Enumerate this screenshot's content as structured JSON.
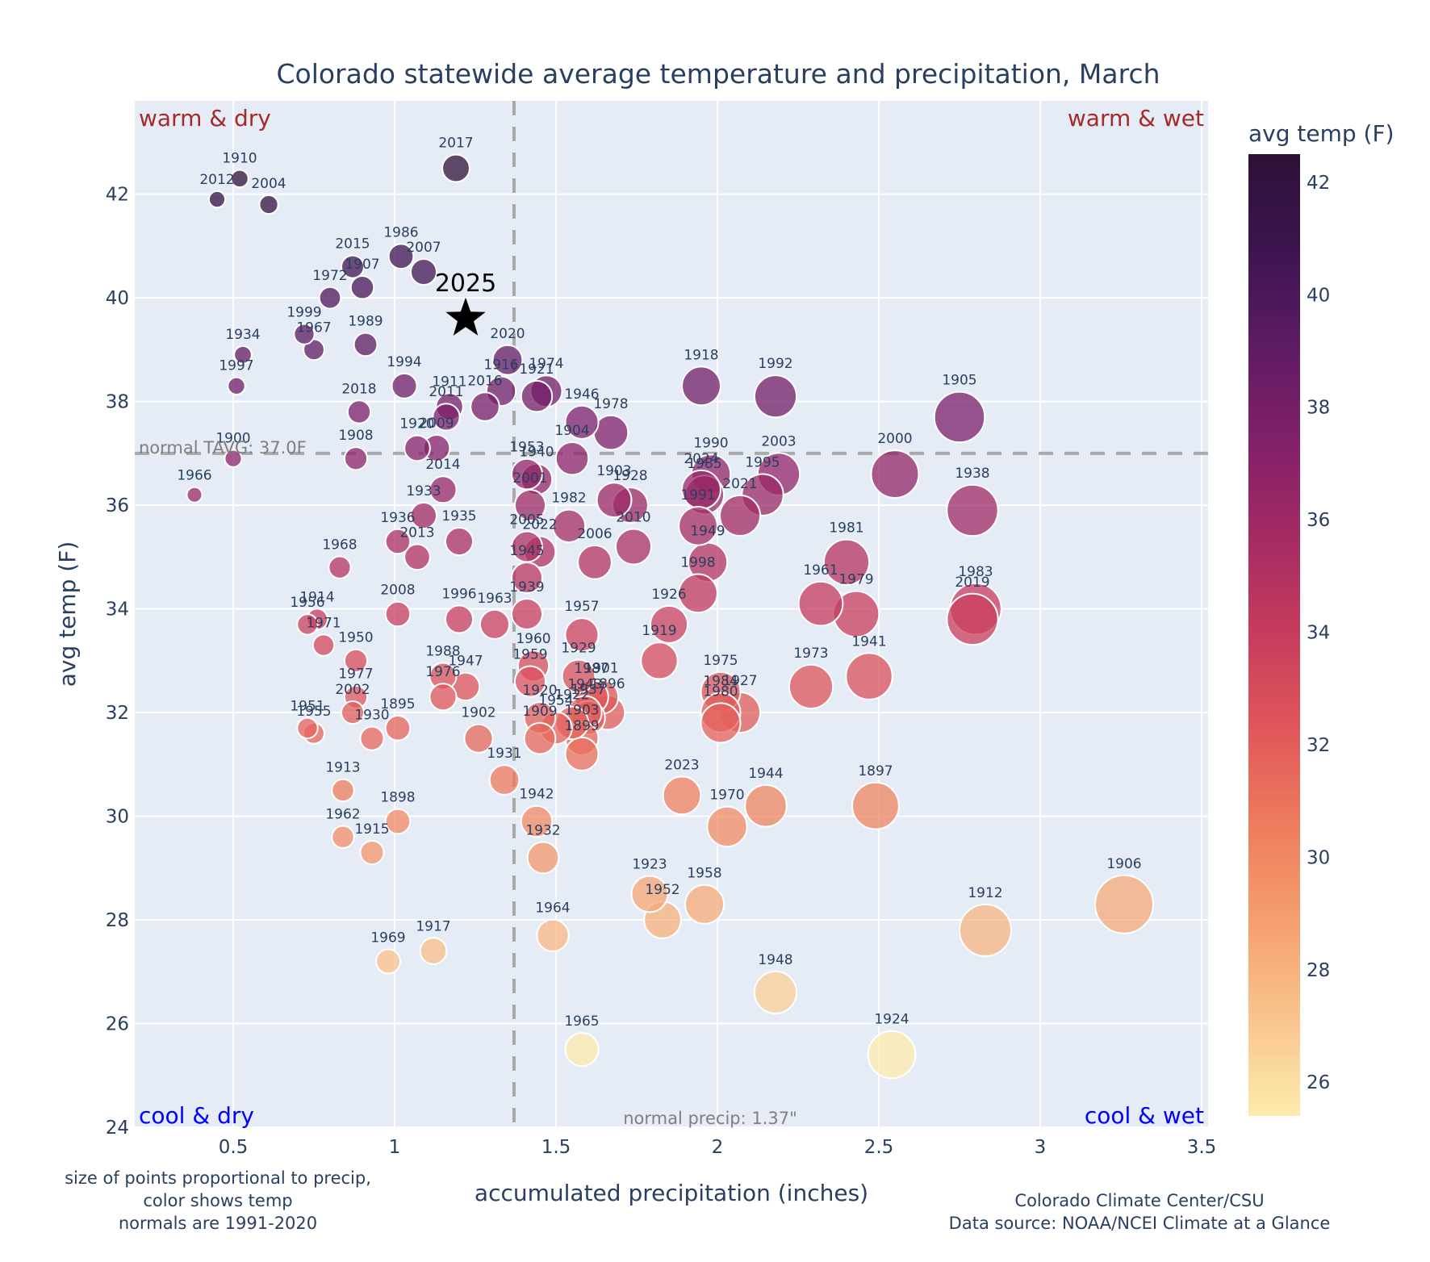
{
  "chart_data": {
    "type": "scatter",
    "title": "Colorado statewide average temperature and precipitation, March",
    "xlabel": "accumulated precipitation (inches)",
    "ylabel": "avg temp (F)",
    "xlim": [
      0.195,
      3.52
    ],
    "ylim": [
      24,
      43.8
    ],
    "x_ticks": [
      0.5,
      1,
      1.5,
      2,
      2.5,
      3,
      3.5
    ],
    "x_tick_labels": [
      "0.5",
      "1",
      "1.5",
      "2",
      "2.5",
      "3",
      "3.5"
    ],
    "y_ticks": [
      24,
      26,
      28,
      30,
      32,
      34,
      36,
      38,
      40,
      42
    ],
    "y_tick_labels": [
      "24",
      "26",
      "28",
      "30",
      "32",
      "34",
      "36",
      "38",
      "40",
      "42"
    ],
    "grid": true,
    "colorbar": {
      "title": "avg temp (F)",
      "range": [
        25.4,
        42.5
      ],
      "ticks": [
        26,
        28,
        30,
        32,
        34,
        36,
        38,
        40,
        42
      ],
      "tick_labels": [
        "26",
        "28",
        "30",
        "32",
        "34",
        "36",
        "38",
        "40",
        "42"
      ],
      "colorscale": [
        "#fcecad",
        "#f9c48d",
        "#f5a06f",
        "#ee7d5d",
        "#e0585a",
        "#c73c5d",
        "#a52b63",
        "#82206a",
        "#5e1b63",
        "#3c1450",
        "#2d1137"
      ]
    },
    "normals": {
      "tavg": 37.0,
      "tavg_label": "normal TAVG: 37.0F",
      "precip": 1.37,
      "precip_label": "normal precip: 1.37\""
    },
    "quadrant_labels": {
      "warm_dry": "warm & dry",
      "warm_wet": "warm & wet",
      "cool_dry": "cool & dry",
      "cool_wet": "cool & wet"
    },
    "highlight": {
      "label": "2025",
      "x": 1.22,
      "y": 39.6
    },
    "points": [
      {
        "year": "1910",
        "x": 0.52,
        "y": 42.3
      },
      {
        "year": "2012",
        "x": 0.45,
        "y": 41.9
      },
      {
        "year": "2004",
        "x": 0.61,
        "y": 41.8
      },
      {
        "year": "2017",
        "x": 1.19,
        "y": 42.5
      },
      {
        "year": "1986",
        "x": 1.02,
        "y": 40.8
      },
      {
        "year": "2007",
        "x": 1.09,
        "y": 40.5
      },
      {
        "year": "2015",
        "x": 0.87,
        "y": 40.6
      },
      {
        "year": "1907",
        "x": 0.9,
        "y": 40.2
      },
      {
        "year": "1972",
        "x": 0.8,
        "y": 40.0
      },
      {
        "year": "1999",
        "x": 0.72,
        "y": 39.3
      },
      {
        "year": "1967",
        "x": 0.75,
        "y": 39.0
      },
      {
        "year": "1989",
        "x": 0.91,
        "y": 39.1
      },
      {
        "year": "1934",
        "x": 0.53,
        "y": 38.9
      },
      {
        "year": "1997",
        "x": 0.51,
        "y": 38.3
      },
      {
        "year": "1994",
        "x": 1.03,
        "y": 38.3
      },
      {
        "year": "2018",
        "x": 0.89,
        "y": 37.8
      },
      {
        "year": "1911",
        "x": 1.17,
        "y": 37.9
      },
      {
        "year": "2011",
        "x": 1.16,
        "y": 37.7
      },
      {
        "year": "2016",
        "x": 1.28,
        "y": 37.9
      },
      {
        "year": "2020",
        "x": 1.35,
        "y": 38.8
      },
      {
        "year": "1916",
        "x": 1.33,
        "y": 38.2
      },
      {
        "year": "1921",
        "x": 1.44,
        "y": 38.1
      },
      {
        "year": "1974",
        "x": 1.47,
        "y": 38.2
      },
      {
        "year": "1946",
        "x": 1.58,
        "y": 37.6
      },
      {
        "year": "1978",
        "x": 1.67,
        "y": 37.4
      },
      {
        "year": "1904",
        "x": 1.55,
        "y": 36.9
      },
      {
        "year": "1920",
        "x": 1.07,
        "y": 37.1
      },
      {
        "year": "2009",
        "x": 1.13,
        "y": 37.1
      },
      {
        "year": "1900",
        "x": 0.5,
        "y": 36.9
      },
      {
        "year": "1908",
        "x": 0.88,
        "y": 36.9
      },
      {
        "year": "1966",
        "x": 0.38,
        "y": 36.2
      },
      {
        "year": "2014",
        "x": 1.15,
        "y": 36.3
      },
      {
        "year": "1953",
        "x": 1.41,
        "y": 36.6
      },
      {
        "year": "1940",
        "x": 1.44,
        "y": 36.5
      },
      {
        "year": "2001",
        "x": 1.42,
        "y": 36.0
      },
      {
        "year": "1903",
        "x": 1.68,
        "y": 36.1
      },
      {
        "year": "1928",
        "x": 1.73,
        "y": 36.0
      },
      {
        "year": "1982",
        "x": 1.54,
        "y": 35.6
      },
      {
        "year": "2010",
        "x": 1.74,
        "y": 35.2
      },
      {
        "year": "2006",
        "x": 1.62,
        "y": 34.9
      },
      {
        "year": "1933",
        "x": 1.09,
        "y": 35.8
      },
      {
        "year": "1936",
        "x": 1.01,
        "y": 35.3
      },
      {
        "year": "2013",
        "x": 1.07,
        "y": 35.0
      },
      {
        "year": "1935",
        "x": 1.2,
        "y": 35.3
      },
      {
        "year": "2005",
        "x": 1.41,
        "y": 35.2
      },
      {
        "year": "2022",
        "x": 1.45,
        "y": 35.1
      },
      {
        "year": "1945",
        "x": 1.41,
        "y": 34.6
      },
      {
        "year": "1939",
        "x": 1.41,
        "y": 33.9
      },
      {
        "year": "1968",
        "x": 0.83,
        "y": 34.8
      },
      {
        "year": "2008",
        "x": 1.01,
        "y": 33.9
      },
      {
        "year": "1996",
        "x": 1.2,
        "y": 33.8
      },
      {
        "year": "1963",
        "x": 1.31,
        "y": 33.7
      },
      {
        "year": "1956",
        "x": 0.73,
        "y": 33.7
      },
      {
        "year": "1914",
        "x": 0.76,
        "y": 33.8
      },
      {
        "year": "1971",
        "x": 0.78,
        "y": 33.3
      },
      {
        "year": "1950",
        "x": 0.88,
        "y": 33.0
      },
      {
        "year": "1918",
        "x": 1.95,
        "y": 38.3
      },
      {
        "year": "1992",
        "x": 2.18,
        "y": 38.1
      },
      {
        "year": "1905",
        "x": 2.75,
        "y": 37.7
      },
      {
        "year": "2000",
        "x": 2.55,
        "y": 36.6
      },
      {
        "year": "1938",
        "x": 2.79,
        "y": 35.9
      },
      {
        "year": "1990",
        "x": 1.98,
        "y": 36.6
      },
      {
        "year": "2003",
        "x": 2.19,
        "y": 36.6
      },
      {
        "year": "2024",
        "x": 1.95,
        "y": 36.3
      },
      {
        "year": "1995",
        "x": 2.14,
        "y": 36.2
      },
      {
        "year": "1985",
        "x": 1.96,
        "y": 36.2
      },
      {
        "year": "2021",
        "x": 2.07,
        "y": 35.8
      },
      {
        "year": "1991",
        "x": 1.94,
        "y": 35.6
      },
      {
        "year": "1949",
        "x": 1.97,
        "y": 34.9
      },
      {
        "year": "1998",
        "x": 1.94,
        "y": 34.3
      },
      {
        "year": "1981",
        "x": 2.4,
        "y": 34.9
      },
      {
        "year": "1961",
        "x": 2.32,
        "y": 34.1
      },
      {
        "year": "1979",
        "x": 2.43,
        "y": 33.9
      },
      {
        "year": "1983",
        "x": 2.8,
        "y": 34.0
      },
      {
        "year": "2019",
        "x": 2.79,
        "y": 33.8
      },
      {
        "year": "1926",
        "x": 1.85,
        "y": 33.7
      },
      {
        "year": "1957",
        "x": 1.58,
        "y": 33.5
      },
      {
        "year": "1960",
        "x": 1.43,
        "y": 32.9
      },
      {
        "year": "1959",
        "x": 1.42,
        "y": 32.6
      },
      {
        "year": "1929",
        "x": 1.57,
        "y": 32.7
      },
      {
        "year": "1987",
        "x": 1.61,
        "y": 32.3
      },
      {
        "year": "1919",
        "x": 1.82,
        "y": 33.0
      },
      {
        "year": "1975",
        "x": 2.01,
        "y": 32.4
      },
      {
        "year": "1984",
        "x": 2.01,
        "y": 32.0
      },
      {
        "year": "1927",
        "x": 2.07,
        "y": 32.0
      },
      {
        "year": "1980",
        "x": 2.01,
        "y": 31.8
      },
      {
        "year": "1973",
        "x": 2.29,
        "y": 32.5
      },
      {
        "year": "1941",
        "x": 2.47,
        "y": 32.7
      },
      {
        "year": "1988",
        "x": 1.15,
        "y": 32.7
      },
      {
        "year": "1947",
        "x": 1.22,
        "y": 32.5
      },
      {
        "year": "1976",
        "x": 1.15,
        "y": 32.3
      },
      {
        "year": "1977",
        "x": 0.88,
        "y": 32.3
      },
      {
        "year": "2002",
        "x": 0.87,
        "y": 32.0
      },
      {
        "year": "1901",
        "x": 1.64,
        "y": 32.3
      },
      {
        "year": "1920b",
        "label": "1920",
        "x": 1.45,
        "y": 31.9
      },
      {
        "year": "1943",
        "x": 1.59,
        "y": 32.0
      },
      {
        "year": "1922",
        "x": 1.55,
        "y": 31.8
      },
      {
        "year": "1937",
        "x": 1.6,
        "y": 31.9
      },
      {
        "year": "1954",
        "x": 1.5,
        "y": 31.7
      },
      {
        "year": "1909",
        "x": 1.45,
        "y": 31.5
      },
      {
        "year": "1903b",
        "label": "1903",
        "x": 1.58,
        "y": 31.5
      },
      {
        "year": "1896",
        "x": 1.66,
        "y": 32.0
      },
      {
        "year": "1899",
        "x": 1.58,
        "y": 31.2
      },
      {
        "year": "1895",
        "x": 1.01,
        "y": 31.7
      },
      {
        "year": "1930",
        "x": 0.93,
        "y": 31.5
      },
      {
        "year": "1951",
        "x": 0.73,
        "y": 31.7
      },
      {
        "year": "1955",
        "x": 0.75,
        "y": 31.6
      },
      {
        "year": "1902",
        "x": 1.26,
        "y": 31.5
      },
      {
        "year": "1931",
        "x": 1.34,
        "y": 30.7
      },
      {
        "year": "1913",
        "x": 0.84,
        "y": 30.5
      },
      {
        "year": "1898",
        "x": 1.01,
        "y": 29.9
      },
      {
        "year": "1962",
        "x": 0.84,
        "y": 29.6
      },
      {
        "year": "1915",
        "x": 0.93,
        "y": 29.3
      },
      {
        "year": "1942",
        "x": 1.44,
        "y": 29.9
      },
      {
        "year": "1932",
        "x": 1.46,
        "y": 29.2
      },
      {
        "year": "2023",
        "x": 1.89,
        "y": 30.4
      },
      {
        "year": "1970",
        "x": 2.03,
        "y": 29.8
      },
      {
        "year": "1944",
        "x": 2.15,
        "y": 30.2
      },
      {
        "year": "1897",
        "x": 2.49,
        "y": 30.2
      },
      {
        "year": "1923",
        "x": 1.79,
        "y": 28.5
      },
      {
        "year": "1952",
        "x": 1.83,
        "y": 28.0
      },
      {
        "year": "1958",
        "x": 1.96,
        "y": 28.3
      },
      {
        "year": "1964",
        "x": 1.49,
        "y": 27.7
      },
      {
        "year": "1969",
        "x": 0.98,
        "y": 27.2
      },
      {
        "year": "1917",
        "x": 1.12,
        "y": 27.4
      },
      {
        "year": "1912",
        "x": 2.83,
        "y": 27.8
      },
      {
        "year": "1906",
        "x": 3.26,
        "y": 28.3
      },
      {
        "year": "1948",
        "x": 2.18,
        "y": 26.6
      },
      {
        "year": "1965",
        "x": 1.58,
        "y": 25.5
      },
      {
        "year": "1924",
        "x": 2.54,
        "y": 25.4
      }
    ],
    "notes": {
      "left": [
        "size of points proportional to precip,",
        "color shows temp",
        "normals are 1991-2020"
      ],
      "right": [
        "Colorado Climate Center/CSU",
        "Data source: NOAA/NCEI Climate at a Glance"
      ]
    }
  }
}
